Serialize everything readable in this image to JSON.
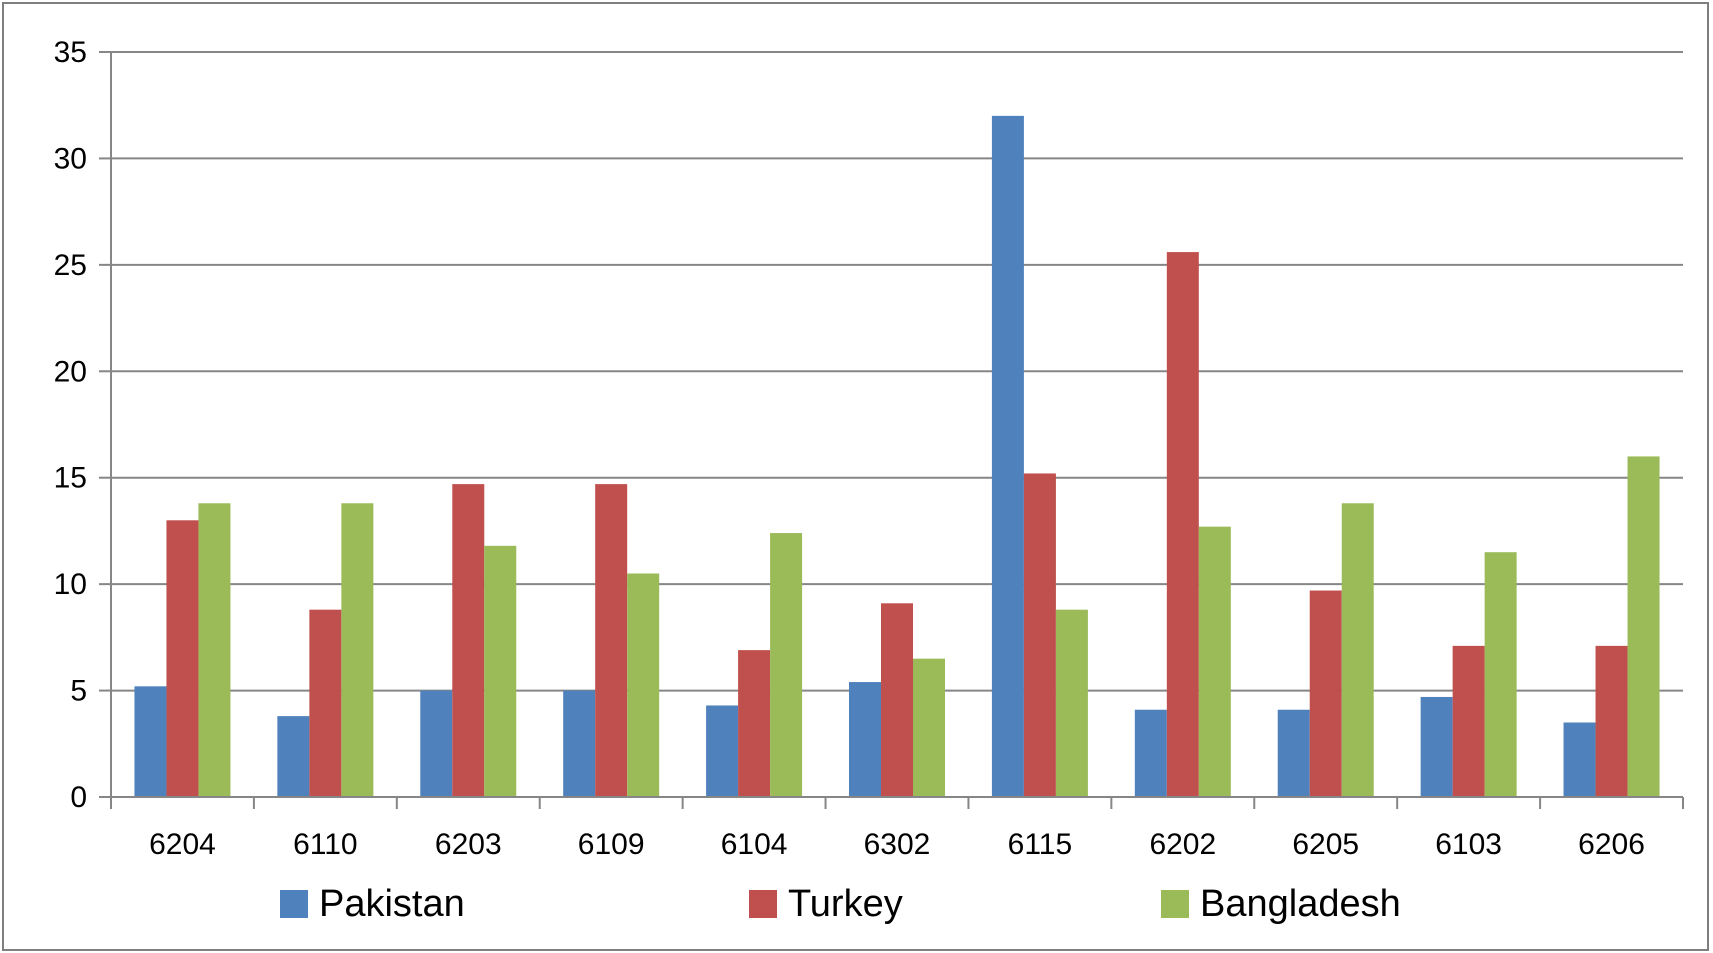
{
  "chart_data": {
    "type": "bar",
    "categories": [
      "6204",
      "6110",
      "6203",
      "6109",
      "6104",
      "6302",
      "6115",
      "6202",
      "6205",
      "6103",
      "6206"
    ],
    "series": [
      {
        "name": "Pakistan",
        "color": "#4f81bd",
        "values": [
          5.2,
          3.8,
          5.0,
          5.0,
          4.3,
          5.4,
          32.0,
          4.1,
          4.1,
          4.7,
          3.5
        ]
      },
      {
        "name": "Turkey",
        "color": "#c0504d",
        "values": [
          13.0,
          8.8,
          14.7,
          14.7,
          6.9,
          9.1,
          15.2,
          25.6,
          9.7,
          7.1,
          7.1
        ]
      },
      {
        "name": "Bangladesh",
        "color": "#9bbb59",
        "values": [
          13.8,
          13.8,
          11.8,
          10.5,
          12.4,
          6.5,
          8.8,
          12.7,
          13.8,
          11.5,
          16.0
        ]
      }
    ],
    "yticks": [
      "0",
      "5",
      "10",
      "15",
      "20",
      "25",
      "30",
      "35"
    ],
    "ylim": [
      0,
      35
    ],
    "grid": true,
    "legend_position": "bottom"
  }
}
